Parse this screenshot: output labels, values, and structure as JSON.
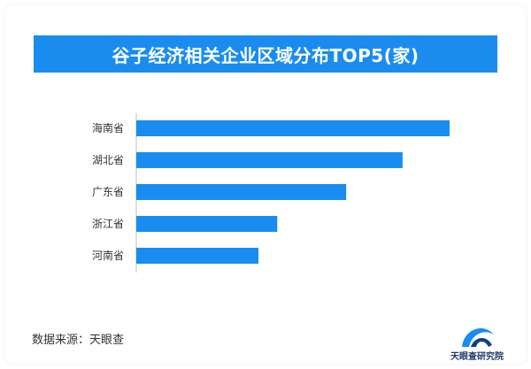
{
  "chart_data": {
    "type": "bar",
    "orientation": "horizontal",
    "title": "谷子经济相关企业区域分布TOP5(家)",
    "categories": [
      "海南省",
      "湖北省",
      "广东省",
      "浙江省",
      "河南省"
    ],
    "values": [
      100,
      85,
      67,
      45,
      39
    ],
    "xlim": [
      0,
      100
    ],
    "grid": false,
    "legend": "none",
    "bar_color": "#1a8cf0",
    "title_bg_color": "#1a8cf0"
  },
  "footer": {
    "source": "数据来源：天眼查",
    "logo_text": "天眼查研究院"
  }
}
